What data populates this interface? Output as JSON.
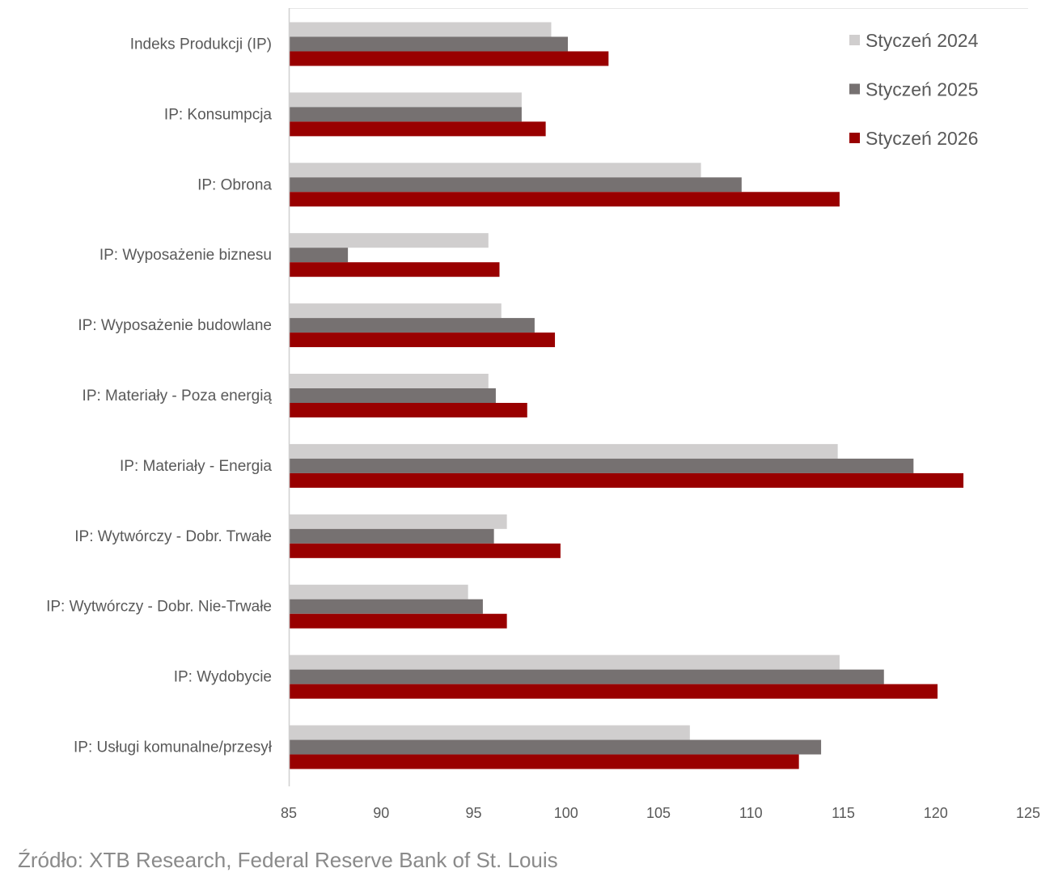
{
  "chart_data": {
    "type": "bar",
    "orientation": "horizontal",
    "title": "",
    "xlabel": "",
    "ylabel": "",
    "xlim": [
      85,
      125
    ],
    "xticks": [
      85,
      90,
      95,
      100,
      105,
      110,
      115,
      120,
      125
    ],
    "categories": [
      "Indeks Produkcji (IP)",
      "IP: Konsumpcja",
      "IP: Obrona",
      "IP: Wyposażenie biznesu",
      "IP: Wyposażenie budowlane",
      "IP: Materiały - Poza energią",
      "IP: Materiały - Energia",
      "IP: Wytwórczy - Dobr. Trwałe",
      "IP: Wytwórczy - Dobr. Nie-Trwałe",
      "IP: Wydobycie",
      "IP: Usługi komunalne/przesył"
    ],
    "series": [
      {
        "name": "Styczeń 2024",
        "color": "#d0cece",
        "values": [
          99.2,
          97.6,
          107.3,
          95.8,
          96.5,
          95.8,
          114.7,
          96.8,
          94.7,
          114.8,
          106.7
        ]
      },
      {
        "name": "Styczeń 2025",
        "color": "#767171",
        "values": [
          100.1,
          97.6,
          109.5,
          88.2,
          98.3,
          96.2,
          118.8,
          96.1,
          95.5,
          117.2,
          113.8
        ]
      },
      {
        "name": "Styczeń 2026",
        "color": "#990000",
        "values": [
          102.3,
          98.9,
          114.8,
          96.4,
          99.4,
          97.9,
          121.5,
          99.7,
          96.8,
          120.1,
          112.6
        ]
      }
    ],
    "legend_position": "top-right",
    "grid": false
  },
  "source": "Źródło: XTB Research, Federal Reserve Bank of St. Louis"
}
